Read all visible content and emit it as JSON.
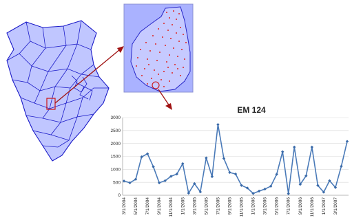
{
  "colors": {
    "map_fill": "#c0c6ff",
    "map_stroke": "#1b1bc8",
    "inset_fill": "#aab2ff",
    "dots": "#e02020",
    "arrow": "#a01212",
    "line": "#4a7ab8",
    "marker": "#3a6aa8",
    "grid": "#d9d9d9"
  },
  "chart_data": {
    "type": "line",
    "title": "EM 124",
    "ylim": [
      0,
      3000
    ],
    "yticks": [
      "0",
      "500",
      "1000",
      "1500",
      "2000",
      "2500",
      "3000"
    ],
    "grid": "horizontal",
    "xtick_labels": [
      "3/1/2004",
      "5/1/2004",
      "7/1/2004",
      "9/1/2004",
      "11/1/2004",
      "1/1/2005",
      "3/1/2005",
      "5/1/2005",
      "7/1/2005",
      "9/1/2005",
      "11/1/2005",
      "1/1/2006",
      "3/1/2006",
      "5/1/2006",
      "7/1/2006",
      "9/1/2006",
      "11/1/2006",
      "1/1/2007",
      "3/1/2007"
    ],
    "values": [
      550,
      480,
      620,
      1480,
      1600,
      1100,
      480,
      560,
      730,
      820,
      1220,
      80,
      450,
      130,
      1440,
      720,
      2730,
      1420,
      880,
      820,
      380,
      280,
      70,
      160,
      240,
      350,
      810,
      1680,
      60,
      1860,
      420,
      750,
      1860,
      380,
      120,
      560,
      300,
      1120,
      2080
    ]
  }
}
